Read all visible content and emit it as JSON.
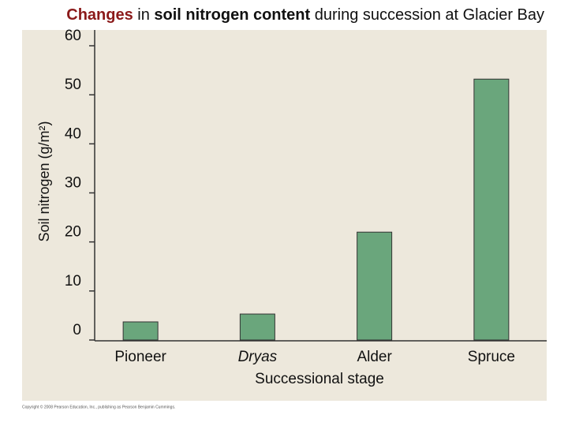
{
  "chart_data": {
    "type": "bar",
    "title_segments": [
      {
        "text": "Changes",
        "bold": true,
        "color": "#8b1a1a"
      },
      {
        "text": " in ",
        "bold": false,
        "color": "#111111"
      },
      {
        "text": "soil nitrogen content",
        "bold": true,
        "color": "#111111"
      },
      {
        "text": " during succession at Glacier Bay",
        "bold": false,
        "color": "#111111"
      }
    ],
    "y_label": "Soil nitrogen (g/m²)",
    "x_label": "Successional stage",
    "categories": [
      "Pioneer",
      "Dryas",
      "Alder",
      "Spruce"
    ],
    "values": [
      3.7,
      5.3,
      22,
      53.2
    ],
    "color": "#6aa67c",
    "ylim": [
      0,
      60
    ],
    "yticks": [
      0,
      10,
      20,
      30,
      40,
      50,
      60
    ],
    "footer": "Copyright © 2008 Pearson Education, Inc., publishing as Pearson Benjamin Cummings."
  }
}
